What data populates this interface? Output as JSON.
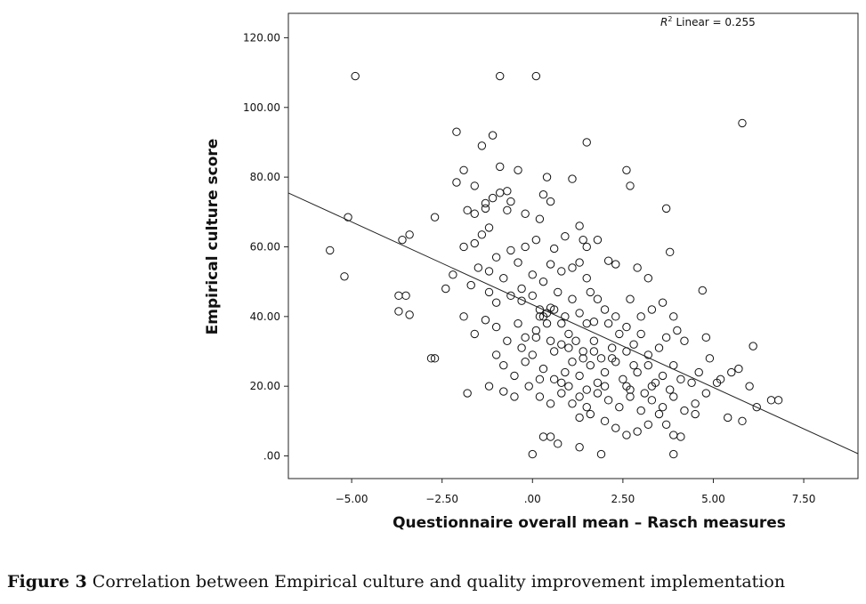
{
  "caption": {
    "label": "Figure 3",
    "text": "Correlation between Empirical culture and quality improvement implementation"
  },
  "chart_data": {
    "type": "scatter",
    "xlabel": "Questionnaire overall mean – Rasch measures",
    "ylabel": "Empirical culture score",
    "xlim": [
      -6.75,
      9
    ],
    "ylim": [
      -6.5,
      127
    ],
    "x_ticks": [
      -5,
      -2.5,
      0,
      2.5,
      5,
      7.5
    ],
    "x_tick_labels": [
      "−5.00",
      "−2.50",
      ".00",
      "2.50",
      "5.00",
      "7.50"
    ],
    "y_ticks": [
      0,
      20,
      40,
      60,
      80,
      100,
      120
    ],
    "y_tick_labels": [
      ".00",
      "20.00",
      "40.00",
      "60.00",
      "80.00",
      "100.00",
      "120.00"
    ],
    "grid": false,
    "fit_line": {
      "type": "linear",
      "r2_label": "Linear = 0.255",
      "intercept": 43.4,
      "slope": -4.75
    },
    "marker": {
      "shape": "open-circle",
      "color": "#111111"
    },
    "points": [
      [
        -4.9,
        109
      ],
      [
        -0.9,
        109
      ],
      [
        0.1,
        109
      ],
      [
        -2.1,
        93
      ],
      [
        -1.1,
        92
      ],
      [
        -1.4,
        89
      ],
      [
        1.5,
        90
      ],
      [
        5.8,
        95.5
      ],
      [
        -1.9,
        82
      ],
      [
        -0.9,
        83
      ],
      [
        -0.4,
        82
      ],
      [
        2.6,
        82
      ],
      [
        -2.1,
        78.5
      ],
      [
        -1.6,
        77.5
      ],
      [
        0.4,
        80
      ],
      [
        1.1,
        79.5
      ],
      [
        2.7,
        77.5
      ],
      [
        -0.9,
        75.5
      ],
      [
        -0.7,
        76
      ],
      [
        0.3,
        75
      ],
      [
        -1.3,
        72.5
      ],
      [
        -1.1,
        74
      ],
      [
        -0.6,
        73
      ],
      [
        0.5,
        73
      ],
      [
        -1.8,
        70.5
      ],
      [
        -1.6,
        69.5
      ],
      [
        -1.3,
        71
      ],
      [
        -0.7,
        70.5
      ],
      [
        -0.2,
        69.5
      ],
      [
        0.2,
        68
      ],
      [
        3.7,
        71
      ],
      [
        -5.1,
        68.5
      ],
      [
        -2.7,
        68.5
      ],
      [
        -1.9,
        60
      ],
      [
        -1.6,
        61
      ],
      [
        -1.4,
        63.5
      ],
      [
        -1.2,
        65.5
      ],
      [
        -1.0,
        57
      ],
      [
        -0.6,
        59
      ],
      [
        -0.4,
        55.5
      ],
      [
        -0.2,
        60
      ],
      [
        0.1,
        62
      ],
      [
        0.6,
        59.5
      ],
      [
        0.9,
        63
      ],
      [
        1.3,
        66
      ],
      [
        1.4,
        62
      ],
      [
        1.5,
        60
      ],
      [
        1.8,
        62
      ],
      [
        -3.6,
        62
      ],
      [
        -3.4,
        63.5
      ],
      [
        -5.6,
        59
      ],
      [
        -5.2,
        51.5
      ],
      [
        -2.2,
        52
      ],
      [
        -1.5,
        54
      ],
      [
        -1.2,
        53
      ],
      [
        -0.8,
        51
      ],
      [
        -0.3,
        48
      ],
      [
        0.0,
        52
      ],
      [
        0.3,
        50
      ],
      [
        0.5,
        55
      ],
      [
        0.8,
        53
      ],
      [
        1.1,
        54
      ],
      [
        1.3,
        55.5
      ],
      [
        1.5,
        51
      ],
      [
        2.1,
        56
      ],
      [
        2.3,
        55
      ],
      [
        2.9,
        54
      ],
      [
        3.2,
        51
      ],
      [
        3.8,
        58.5
      ],
      [
        -3.7,
        46
      ],
      [
        -3.5,
        46
      ],
      [
        -3.7,
        41.5
      ],
      [
        -3.4,
        40.5
      ],
      [
        -2.4,
        48
      ],
      [
        -1.7,
        49
      ],
      [
        -1.2,
        47
      ],
      [
        -1.0,
        44
      ],
      [
        -0.6,
        46
      ],
      [
        -0.3,
        44.5
      ],
      [
        0.0,
        46
      ],
      [
        0.2,
        42
      ],
      [
        0.3,
        40
      ],
      [
        0.5,
        42.5
      ],
      [
        0.7,
        47
      ],
      [
        0.9,
        40
      ],
      [
        1.1,
        45
      ],
      [
        1.3,
        41
      ],
      [
        1.6,
        47
      ],
      [
        1.8,
        45
      ],
      [
        2.0,
        42
      ],
      [
        2.3,
        40
      ],
      [
        2.7,
        45
      ],
      [
        3.0,
        40
      ],
      [
        3.3,
        42
      ],
      [
        3.6,
        44
      ],
      [
        3.9,
        40
      ],
      [
        4.7,
        47.5
      ],
      [
        -1.9,
        40
      ],
      [
        -1.6,
        35
      ],
      [
        -1.3,
        39
      ],
      [
        -1.0,
        37
      ],
      [
        -0.7,
        33
      ],
      [
        -0.4,
        38
      ],
      [
        -0.2,
        34
      ],
      [
        0.1,
        36
      ],
      [
        0.4,
        38
      ],
      [
        0.6,
        30
      ],
      [
        0.8,
        32
      ],
      [
        1.0,
        35
      ],
      [
        1.2,
        33
      ],
      [
        1.4,
        30
      ],
      [
        1.7,
        33
      ],
      [
        1.9,
        28
      ],
      [
        2.2,
        31
      ],
      [
        2.4,
        35
      ],
      [
        2.6,
        37
      ],
      [
        2.8,
        32
      ],
      [
        3.0,
        35
      ],
      [
        3.2,
        29
      ],
      [
        3.5,
        31
      ],
      [
        3.7,
        34
      ],
      [
        4.0,
        36
      ],
      [
        4.2,
        33
      ],
      [
        4.8,
        34
      ],
      [
        -2.8,
        28
      ],
      [
        -2.7,
        28
      ],
      [
        -1.0,
        29
      ],
      [
        -0.8,
        26
      ],
      [
        -0.5,
        23
      ],
      [
        -0.2,
        27
      ],
      [
        0.0,
        29
      ],
      [
        0.3,
        25
      ],
      [
        0.6,
        22
      ],
      [
        0.9,
        24
      ],
      [
        1.1,
        27
      ],
      [
        1.3,
        23
      ],
      [
        1.6,
        26
      ],
      [
        1.8,
        21
      ],
      [
        2.0,
        24
      ],
      [
        2.3,
        27
      ],
      [
        2.5,
        22
      ],
      [
        2.7,
        19
      ],
      [
        2.9,
        24
      ],
      [
        3.2,
        26
      ],
      [
        3.4,
        21
      ],
      [
        3.6,
        23
      ],
      [
        3.9,
        26
      ],
      [
        4.1,
        22
      ],
      [
        4.4,
        21
      ],
      [
        4.6,
        24
      ],
      [
        4.9,
        28
      ],
      [
        5.2,
        22
      ],
      [
        5.5,
        24
      ],
      [
        5.7,
        25
      ],
      [
        6.1,
        31.5
      ],
      [
        -1.8,
        18
      ],
      [
        -1.2,
        20
      ],
      [
        -0.8,
        18.5
      ],
      [
        -0.5,
        17
      ],
      [
        -0.1,
        20
      ],
      [
        0.2,
        17
      ],
      [
        0.5,
        15
      ],
      [
        0.8,
        18
      ],
      [
        1.0,
        20
      ],
      [
        1.3,
        17
      ],
      [
        1.5,
        14
      ],
      [
        1.8,
        18
      ],
      [
        2.1,
        16
      ],
      [
        2.4,
        14
      ],
      [
        2.7,
        17
      ],
      [
        3.0,
        13
      ],
      [
        3.3,
        16
      ],
      [
        3.6,
        14
      ],
      [
        3.9,
        17
      ],
      [
        4.2,
        13
      ],
      [
        4.5,
        15
      ],
      [
        4.8,
        18
      ],
      [
        5.1,
        21
      ],
      [
        5.4,
        11
      ],
      [
        5.8,
        10
      ],
      [
        6.0,
        20
      ],
      [
        6.2,
        14
      ],
      [
        6.6,
        16
      ],
      [
        6.8,
        16
      ],
      [
        0.3,
        5.5
      ],
      [
        0.5,
        5.5
      ],
      [
        0.7,
        3.5
      ],
      [
        1.3,
        11
      ],
      [
        1.6,
        12
      ],
      [
        2.0,
        10
      ],
      [
        2.3,
        8
      ],
      [
        2.6,
        6
      ],
      [
        2.9,
        7
      ],
      [
        3.2,
        9
      ],
      [
        3.5,
        12
      ],
      [
        3.7,
        9
      ],
      [
        3.9,
        6
      ],
      [
        4.1,
        5.5
      ],
      [
        4.5,
        12
      ],
      [
        0.0,
        0.5
      ],
      [
        1.9,
        0.5
      ],
      [
        3.9,
        0.5
      ],
      [
        1.3,
        2.5
      ],
      [
        0.2,
        40
      ],
      [
        0.4,
        41
      ],
      [
        0.6,
        42
      ],
      [
        0.8,
        38
      ],
      [
        1.5,
        38
      ],
      [
        1.7,
        38.5
      ],
      [
        2.1,
        38
      ],
      [
        0.5,
        33
      ],
      [
        1.0,
        31
      ],
      [
        1.4,
        28
      ],
      [
        2.2,
        28
      ],
      [
        2.6,
        30
      ],
      [
        0.2,
        22
      ],
      [
        0.8,
        21
      ],
      [
        1.5,
        19
      ],
      [
        2.0,
        20
      ],
      [
        2.6,
        20
      ],
      [
        3.1,
        18
      ],
      [
        -0.3,
        31
      ],
      [
        0.1,
        34
      ],
      [
        1.7,
        30
      ],
      [
        2.8,
        26
      ],
      [
        3.3,
        20
      ],
      [
        1.1,
        15
      ],
      [
        3.8,
        19
      ]
    ]
  }
}
